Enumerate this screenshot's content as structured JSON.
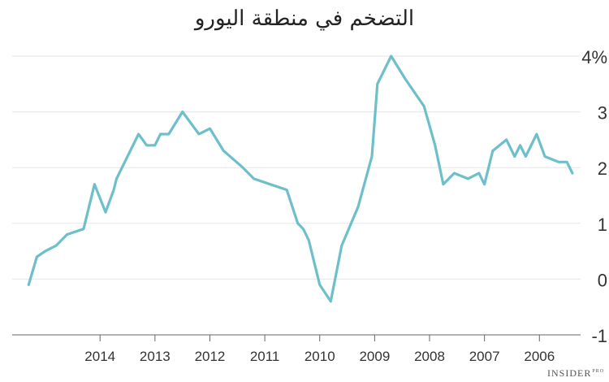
{
  "chart_data": {
    "type": "line",
    "title": "التضخم في منطقة اليورو",
    "xlabel": "",
    "ylabel": "",
    "x_axis_direction": "right-to-left",
    "y_axis_side": "right",
    "ylim": [
      -1,
      4
    ],
    "yticks": [
      {
        "value": 4,
        "label": "4%"
      },
      {
        "value": 3,
        "label": "3"
      },
      {
        "value": 2,
        "label": "2"
      },
      {
        "value": 1,
        "label": "1"
      },
      {
        "value": 0,
        "label": "0"
      },
      {
        "value": -1,
        "label": "-1"
      }
    ],
    "xlim": [
      2005.25,
      2015.6
    ],
    "xticks": [
      2014,
      2013,
      2012,
      2011,
      2010,
      2009,
      2008,
      2007,
      2006
    ],
    "grid": "horizontal",
    "series_color": "#6dbfc9",
    "series": [
      {
        "x": [
          2015.3,
          2015.15,
          2015.0,
          2014.8,
          2014.6,
          2014.3,
          2014.1,
          2013.9,
          2013.75,
          2013.7,
          2013.5,
          2013.3,
          2013.15,
          2013.0,
          2012.9,
          2012.75,
          2012.5,
          2012.2,
          2012.0,
          2011.75,
          2011.4,
          2011.2,
          2010.9,
          2010.6,
          2010.4,
          2010.3,
          2010.2,
          2010.0,
          2009.8,
          2009.6,
          2009.3,
          2009.05,
          2008.95,
          2008.7,
          2008.45,
          2008.1,
          2007.9,
          2007.75,
          2007.55,
          2007.3,
          2007.1,
          2007.0,
          2006.85,
          2006.6,
          2006.45,
          2006.35,
          2006.25,
          2006.05,
          2005.9,
          2005.65,
          2005.5,
          2005.4
        ],
        "values": [
          -0.1,
          0.4,
          0.5,
          0.6,
          0.8,
          0.9,
          1.7,
          1.2,
          1.6,
          1.8,
          2.2,
          2.6,
          2.4,
          2.4,
          2.6,
          2.6,
          3.0,
          2.6,
          2.7,
          2.3,
          2.0,
          1.8,
          1.7,
          1.6,
          1.0,
          0.9,
          0.7,
          -0.1,
          -0.4,
          0.6,
          1.3,
          2.2,
          3.5,
          4.0,
          3.6,
          3.1,
          2.4,
          1.7,
          1.9,
          1.8,
          1.9,
          1.7,
          2.3,
          2.5,
          2.2,
          2.4,
          2.2,
          2.6,
          2.2,
          2.1,
          2.1,
          1.9
        ]
      }
    ]
  },
  "brand": {
    "name": "INSIDER",
    "suffix": "PRO"
  }
}
